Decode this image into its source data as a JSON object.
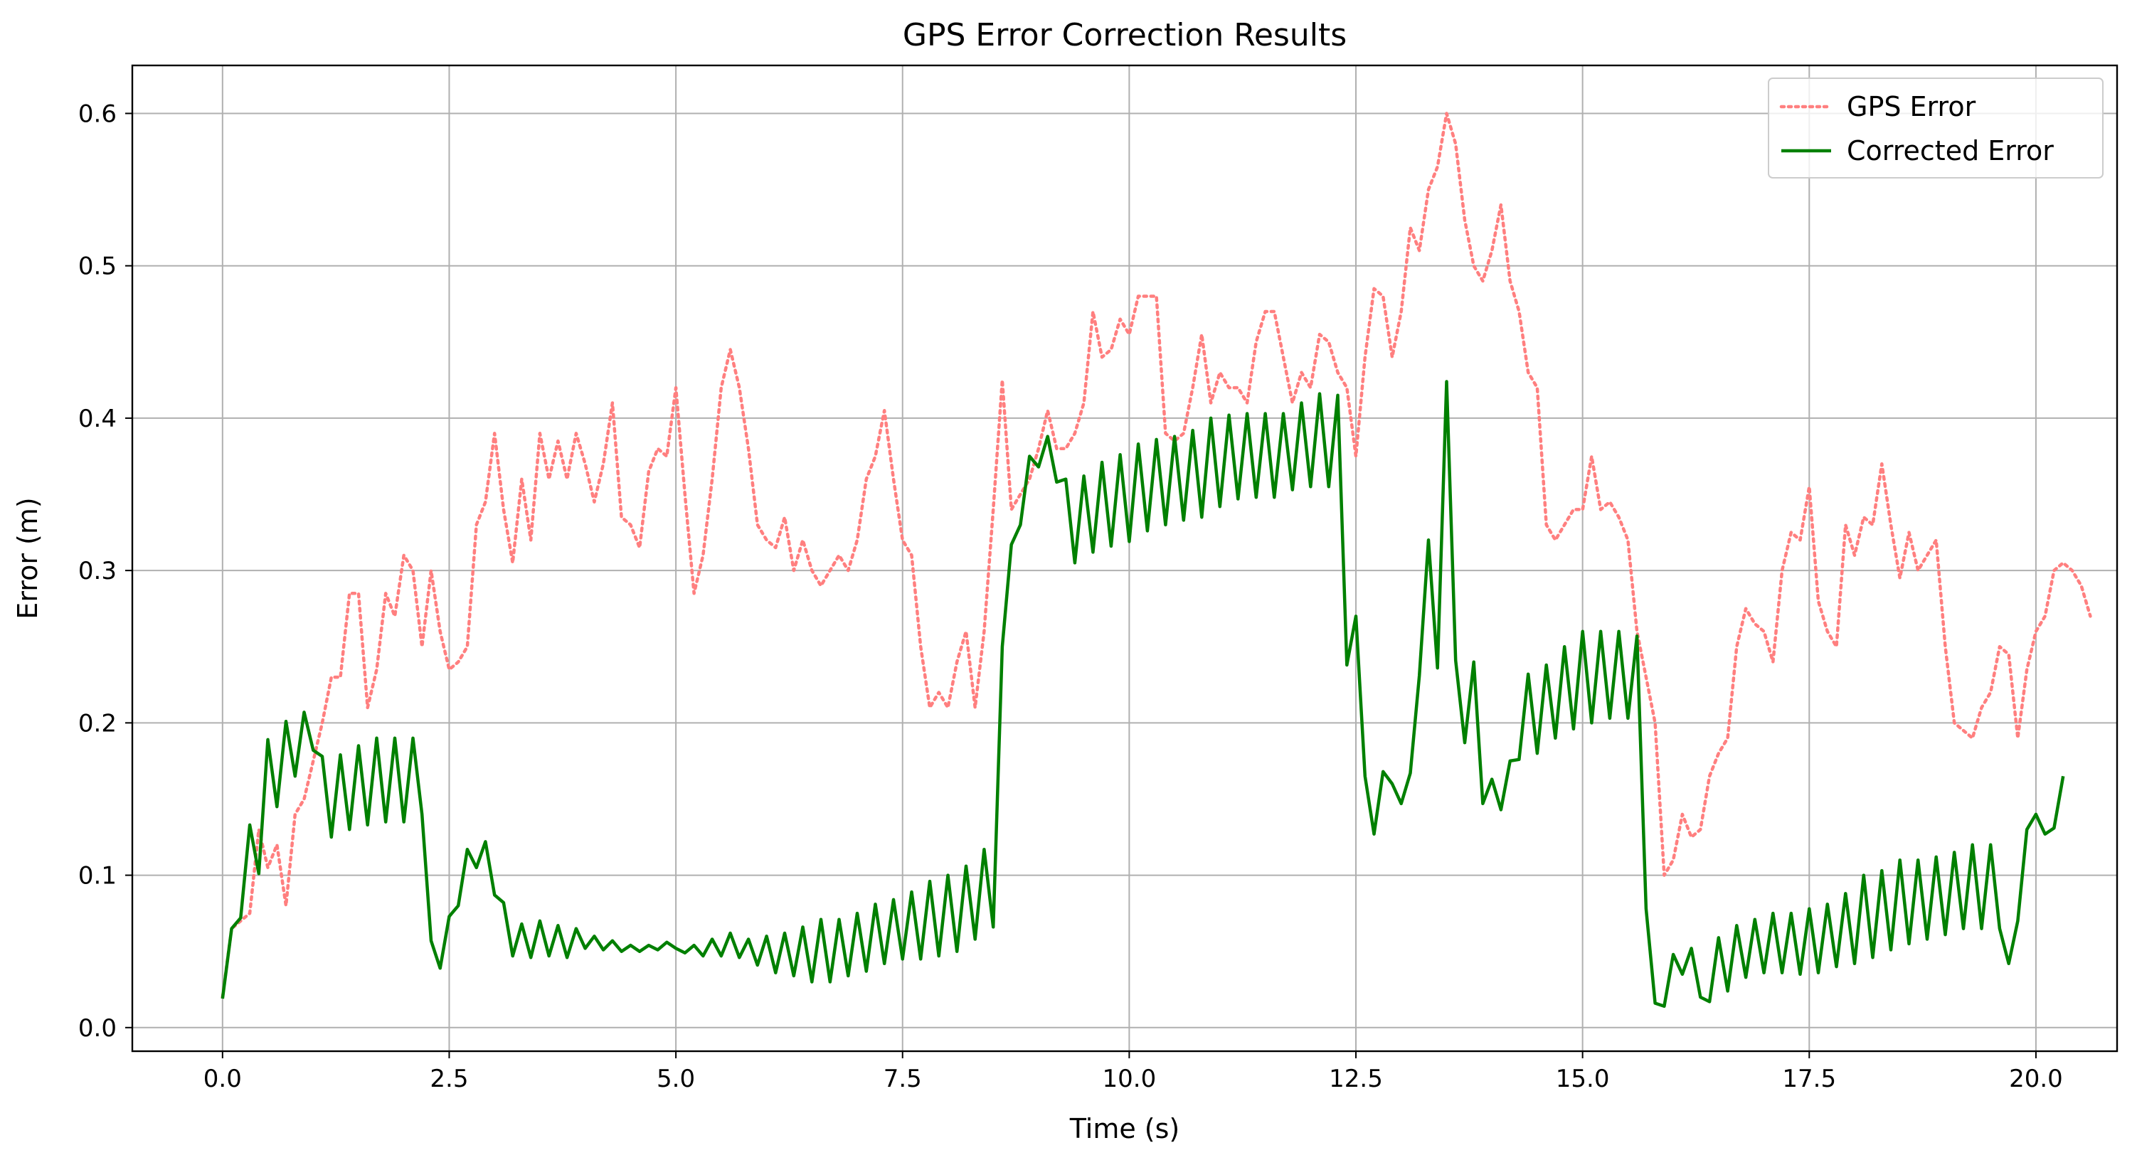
{
  "chart_data": {
    "type": "line",
    "title": "GPS Error Correction Results",
    "xlabel": "Time (s)",
    "ylabel": "Error (m)",
    "xlim": [
      -0.995,
      20.895
    ],
    "ylim": [
      -0.0155,
      0.6315
    ],
    "xticks": [
      0.0,
      2.5,
      5.0,
      7.5,
      10.0,
      12.5,
      15.0,
      17.5,
      20.0
    ],
    "xtick_labels": [
      "0.0",
      "2.5",
      "5.0",
      "7.5",
      "10.0",
      "12.5",
      "15.0",
      "17.5",
      "20.0"
    ],
    "yticks": [
      0.0,
      0.1,
      0.2,
      0.3,
      0.4,
      0.5,
      0.6
    ],
    "ytick_labels": [
      "0.0",
      "0.1",
      "0.2",
      "0.3",
      "0.4",
      "0.5",
      "0.6"
    ],
    "grid": true,
    "legend": "upper right",
    "x_step": 0.1,
    "series": [
      {
        "name": "GPS Error",
        "color": "#ff7f7f",
        "style": "dotted",
        "values": [
          0.02,
          0.065,
          0.07,
          0.075,
          0.13,
          0.105,
          0.12,
          0.08,
          0.14,
          0.15,
          0.175,
          0.2,
          0.23,
          0.23,
          0.285,
          0.285,
          0.21,
          0.235,
          0.285,
          0.27,
          0.31,
          0.3,
          0.25,
          0.3,
          0.26,
          0.235,
          0.24,
          0.25,
          0.33,
          0.345,
          0.39,
          0.34,
          0.305,
          0.36,
          0.32,
          0.39,
          0.36,
          0.385,
          0.36,
          0.39,
          0.37,
          0.345,
          0.37,
          0.41,
          0.335,
          0.33,
          0.315,
          0.365,
          0.38,
          0.375,
          0.42,
          0.35,
          0.285,
          0.31,
          0.36,
          0.42,
          0.445,
          0.42,
          0.38,
          0.33,
          0.32,
          0.315,
          0.335,
          0.3,
          0.32,
          0.3,
          0.29,
          0.3,
          0.31,
          0.3,
          0.32,
          0.36,
          0.375,
          0.405,
          0.36,
          0.32,
          0.31,
          0.25,
          0.21,
          0.22,
          0.21,
          0.24,
          0.26,
          0.21,
          0.26,
          0.34,
          0.425,
          0.34,
          0.35,
          0.36,
          0.38,
          0.405,
          0.38,
          0.38,
          0.39,
          0.41,
          0.47,
          0.44,
          0.445,
          0.465,
          0.455,
          0.48,
          0.48,
          0.48,
          0.39,
          0.385,
          0.39,
          0.42,
          0.455,
          0.41,
          0.43,
          0.42,
          0.42,
          0.41,
          0.45,
          0.47,
          0.47,
          0.44,
          0.41,
          0.43,
          0.42,
          0.455,
          0.45,
          0.43,
          0.42,
          0.375,
          0.44,
          0.485,
          0.48,
          0.44,
          0.47,
          0.525,
          0.51,
          0.55,
          0.565,
          0.6,
          0.58,
          0.53,
          0.5,
          0.49,
          0.51,
          0.54,
          0.49,
          0.47,
          0.43,
          0.42,
          0.33,
          0.32,
          0.33,
          0.34,
          0.34,
          0.375,
          0.34,
          0.345,
          0.335,
          0.32,
          0.26,
          0.23,
          0.2,
          0.1,
          0.11,
          0.14,
          0.125,
          0.13,
          0.165,
          0.18,
          0.19,
          0.25,
          0.275,
          0.265,
          0.26,
          0.24,
          0.3,
          0.325,
          0.32,
          0.355,
          0.28,
          0.26,
          0.25,
          0.33,
          0.31,
          0.335,
          0.33,
          0.37,
          0.33,
          0.295,
          0.325,
          0.3,
          0.31,
          0.32,
          0.25,
          0.2,
          0.195,
          0.19,
          0.21,
          0.22,
          0.25,
          0.245,
          0.19,
          0.235,
          0.26,
          0.27,
          0.3,
          0.305,
          0.3,
          0.29,
          0.27
        ]
      },
      {
        "name": "Corrected Error",
        "color": "#008000",
        "style": "solid",
        "values": [
          0.019,
          0.065,
          0.072,
          0.133,
          0.101,
          0.189,
          0.145,
          0.201,
          0.165,
          0.207,
          0.182,
          0.178,
          0.125,
          0.179,
          0.13,
          0.185,
          0.133,
          0.19,
          0.135,
          0.19,
          0.135,
          0.19,
          0.14,
          0.057,
          0.039,
          0.073,
          0.08,
          0.117,
          0.105,
          0.122,
          0.087,
          0.082,
          0.047,
          0.068,
          0.046,
          0.07,
          0.047,
          0.067,
          0.046,
          0.065,
          0.052,
          0.06,
          0.051,
          0.057,
          0.05,
          0.054,
          0.05,
          0.054,
          0.051,
          0.056,
          0.052,
          0.049,
          0.054,
          0.047,
          0.058,
          0.047,
          0.062,
          0.046,
          0.058,
          0.041,
          0.06,
          0.036,
          0.062,
          0.034,
          0.066,
          0.03,
          0.071,
          0.03,
          0.071,
          0.034,
          0.075,
          0.037,
          0.081,
          0.042,
          0.084,
          0.045,
          0.089,
          0.045,
          0.096,
          0.047,
          0.1,
          0.05,
          0.106,
          0.058,
          0.117,
          0.066,
          0.25,
          0.317,
          0.33,
          0.375,
          0.368,
          0.388,
          0.358,
          0.36,
          0.305,
          0.362,
          0.312,
          0.371,
          0.316,
          0.376,
          0.319,
          0.383,
          0.326,
          0.386,
          0.33,
          0.388,
          0.333,
          0.392,
          0.335,
          0.4,
          0.342,
          0.402,
          0.347,
          0.403,
          0.348,
          0.403,
          0.348,
          0.403,
          0.353,
          0.41,
          0.355,
          0.416,
          0.355,
          0.415,
          0.238,
          0.27,
          0.165,
          0.127,
          0.168,
          0.16,
          0.147,
          0.167,
          0.231,
          0.32,
          0.236,
          0.424,
          0.241,
          0.187,
          0.24,
          0.147,
          0.163,
          0.143,
          0.175,
          0.176,
          0.232,
          0.18,
          0.238,
          0.19,
          0.25,
          0.196,
          0.26,
          0.2,
          0.26,
          0.203,
          0.26,
          0.203,
          0.257,
          0.078,
          0.016,
          0.014,
          0.048,
          0.035,
          0.052,
          0.02,
          0.017,
          0.059,
          0.024,
          0.067,
          0.033,
          0.071,
          0.036,
          0.075,
          0.036,
          0.075,
          0.035,
          0.078,
          0.036,
          0.081,
          0.04,
          0.088,
          0.042,
          0.1,
          0.046,
          0.103,
          0.051,
          0.11,
          0.055,
          0.11,
          0.058,
          0.112,
          0.061,
          0.115,
          0.065,
          0.12,
          0.065,
          0.12,
          0.065,
          0.042,
          0.07,
          0.13,
          0.14,
          0.127,
          0.131,
          0.165
        ]
      }
    ]
  }
}
